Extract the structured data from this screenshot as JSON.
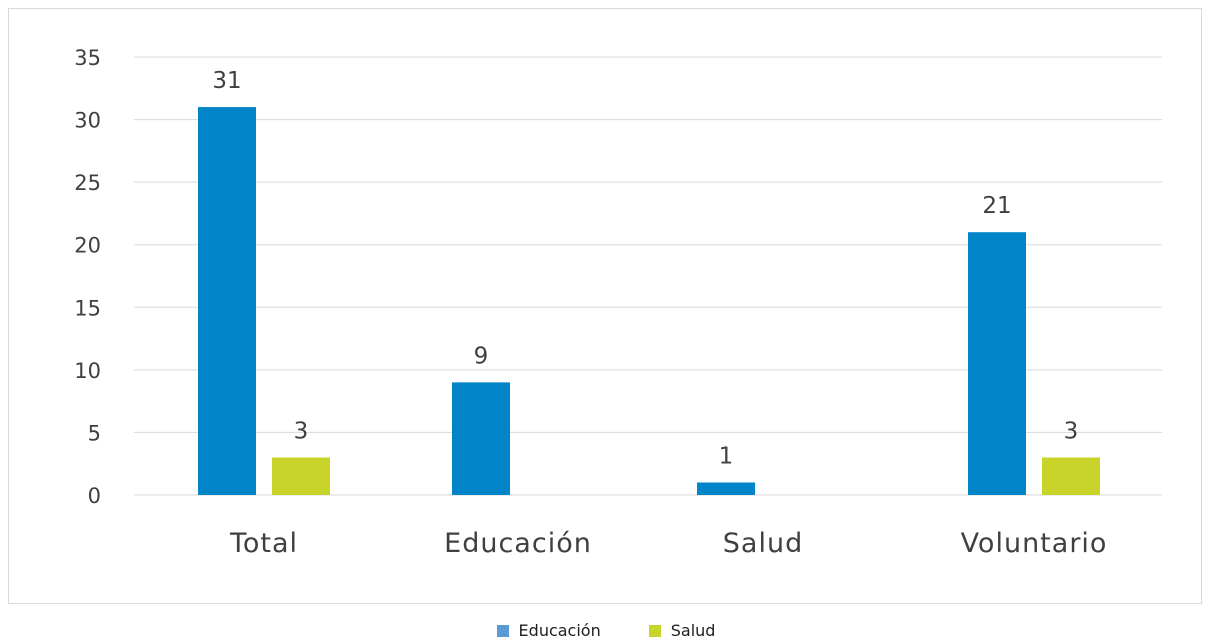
{
  "chart_data": {
    "type": "bar",
    "title": "",
    "xlabel": "",
    "ylabel": "",
    "categories": [
      "Total",
      "Educación",
      "Salud",
      "Voluntario"
    ],
    "series": [
      {
        "name": "Educación",
        "color": "#0284C8",
        "values": [
          31,
          9,
          1,
          21
        ]
      },
      {
        "name": "Salud",
        "color": "#C9D42A",
        "values": [
          3,
          null,
          null,
          3
        ]
      }
    ],
    "ylim": [
      0,
      35
    ],
    "yticks": [
      0,
      5,
      10,
      15,
      20,
      25,
      30,
      35
    ],
    "grid": true,
    "legend_position": "bottom",
    "legend_swatch_colors": [
      "#5B9BD5",
      "#C9D42A"
    ]
  }
}
